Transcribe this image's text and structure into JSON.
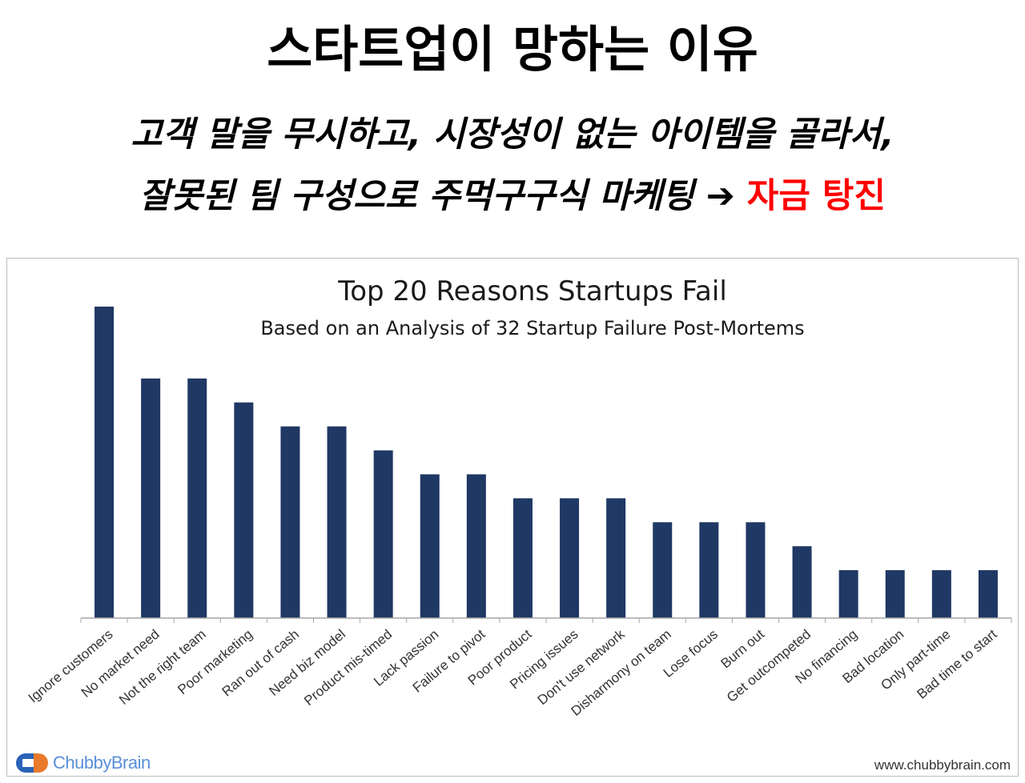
{
  "header": {
    "title": "스타트업이 망하는 이유",
    "line1": "고객 말을 무시하고, 시장성이 없는 아이템을 골라서,",
    "line2": "잘못된 팀 구성으로 주먹구구식 마케팅",
    "arrow": "➔",
    "highlight": "자금 탕진",
    "highlight_color": "#ff0000"
  },
  "chart_data": {
    "type": "bar",
    "title": "Top 20 Reasons Startups Fail",
    "subtitle": "Based on an Analysis of 32 Startup Failure Post-Mortems",
    "categories": [
      "Ignore customers",
      "No market need",
      "Not the right team",
      "Poor marketing",
      "Ran out of cash",
      "Need biz model",
      "Product mis-timed",
      "Lack passion",
      "Failure to pivot",
      "Poor product",
      "Pricing issues",
      "Don't use network",
      "Disharmony on team",
      "Lose focus",
      "Burn out",
      "Get outcompeted",
      "No financing",
      "Bad location",
      "Only part-time",
      "Bad time to start"
    ],
    "values": [
      13,
      10,
      10,
      9,
      8,
      8,
      7,
      6,
      6,
      5,
      5,
      5,
      4,
      4,
      4,
      3,
      2,
      2,
      2,
      2
    ],
    "ylim": [
      0,
      13.5
    ],
    "bar_color": "#1f3864",
    "grid": false,
    "xlabel": "",
    "ylabel": ""
  },
  "footer": {
    "logo_text": "ChubbyBrain",
    "website": "www.chubbybrain.com"
  }
}
